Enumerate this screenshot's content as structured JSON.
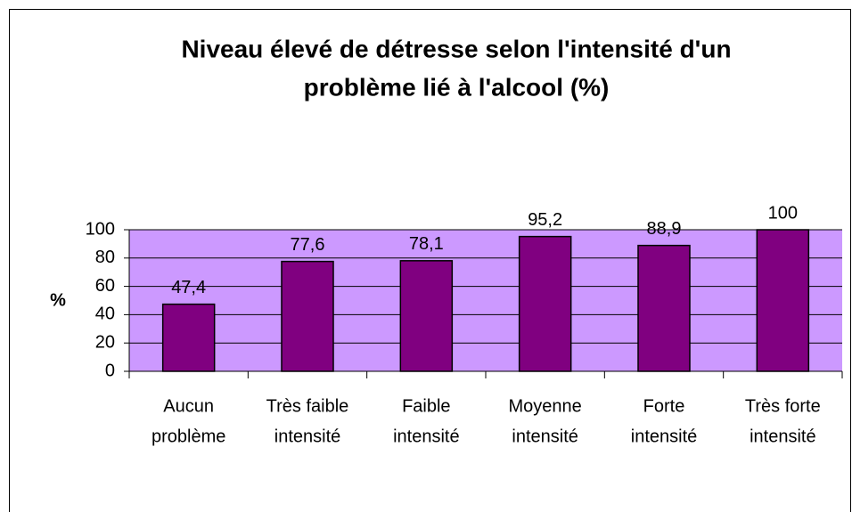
{
  "chart_data": {
    "type": "bar",
    "title": [
      "Niveau élevé de détresse selon l'intensité d'un",
      "problème lié à l'alcool (%)"
    ],
    "y_label": "%",
    "categories": [
      [
        "Aucun",
        "problème"
      ],
      [
        "Très faible",
        "intensité"
      ],
      [
        "Faible",
        "intensité"
      ],
      [
        "Moyenne",
        "intensité"
      ],
      [
        "Forte",
        "intensité"
      ],
      [
        "Très forte",
        "intensité"
      ]
    ],
    "values": [
      47.4,
      77.6,
      78.1,
      95.2,
      88.9,
      100
    ],
    "value_labels": [
      "47,4",
      "77,6",
      "78,1",
      "95,2",
      "88,9",
      "100"
    ],
    "color": "#800080",
    "plot_background": "#cc99ff",
    "ylim": [
      0,
      100
    ],
    "yticks": [
      0,
      20,
      40,
      60,
      80,
      100
    ],
    "grid": true
  }
}
